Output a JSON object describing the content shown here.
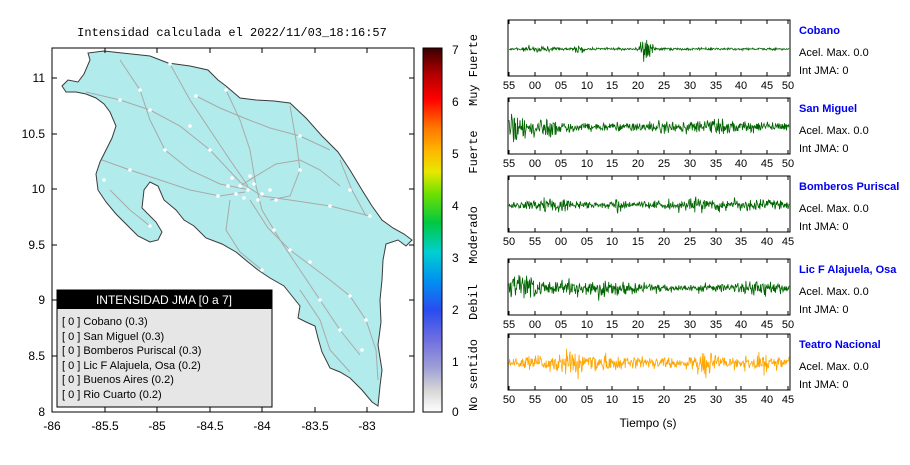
{
  "map": {
    "title": "Intensidad calculada el 2022/11/03_18:16:57",
    "xticks": [
      "-86",
      "-85.5",
      "-85",
      "-84.5",
      "-84",
      "-83.5",
      "-83"
    ],
    "yticks": [
      "11",
      "10.5",
      "10",
      "9.5",
      "9",
      "8.5",
      "8"
    ],
    "colors": {
      "land": "#b2ebeb",
      "road": "#a9a9a9",
      "coast": "#3a3a3a"
    }
  },
  "legend": {
    "title": "INTENSIDAD JMA [0 a 7]",
    "items": [
      "[ 0 ] Cobano (0.3)",
      "[ 0 ] San Miguel (0.3)",
      "[ 0 ] Bomberos Puriscal (0.3)",
      "[ 0 ] Lic F Alajuela, Osa (0.2)",
      "[ 0 ] Buenos Aires (0.2)",
      "[ 0 ] Rio Cuarto (0.2)"
    ]
  },
  "colorbar": {
    "ticks": [
      "7",
      "6",
      "5",
      "4",
      "3",
      "2",
      "1",
      "0"
    ],
    "labels": [
      "Muy Fuerte",
      "Fuerte",
      "Moderado",
      "Debil",
      "No sentido"
    ]
  },
  "waveforms": {
    "xlabel": "Tiempo (s)",
    "panels": [
      {
        "station": "Cobano",
        "acel": "Acel. Max. 0.0",
        "int": "Int JMA: 0",
        "color": "#006400",
        "ticks": [
          "55",
          "00",
          "05",
          "10",
          "15",
          "20",
          "25",
          "30",
          "35",
          "40",
          "45",
          "50"
        ]
      },
      {
        "station": "San Miguel",
        "acel": "Acel. Max. 0.0",
        "int": "Int JMA: 0",
        "color": "#006400",
        "ticks": [
          "55",
          "00",
          "05",
          "10",
          "15",
          "20",
          "25",
          "30",
          "35",
          "40",
          "45",
          "50"
        ]
      },
      {
        "station": "Bomberos Puriscal",
        "acel": "Acel. Max. 0.0",
        "int": "Int JMA: 0",
        "color": "#006400",
        "ticks": [
          "50",
          "55",
          "00",
          "05",
          "10",
          "15",
          "20",
          "25",
          "30",
          "35",
          "40",
          "45"
        ]
      },
      {
        "station": "Lic F Alajuela, Osa",
        "acel": "Acel. Max. 0.0",
        "int": "Int JMA: 0",
        "color": "#006400",
        "ticks": [
          "55",
          "00",
          "05",
          "10",
          "15",
          "20",
          "25",
          "30",
          "35",
          "40",
          "45",
          "50"
        ]
      },
      {
        "station": "Teatro Nacional",
        "acel": "Acel. Max. 0.0",
        "int": "Int JMA: 0",
        "color": "#ffa500",
        "ticks": [
          "50",
          "55",
          "00",
          "05",
          "10",
          "15",
          "20",
          "25",
          "30",
          "35",
          "40",
          "45"
        ]
      }
    ]
  },
  "chart_data": [
    {
      "type": "scatter",
      "title": "Intensidad calculada el 2022/11/03_18:16:57",
      "xlim": [
        -86,
        -82.6
      ],
      "ylim": [
        8,
        11.3
      ],
      "colorbar_range": [
        0,
        7
      ],
      "colorbar_labels": [
        "Muy Fuerte",
        "Fuerte",
        "Moderado",
        "Debil",
        "No sentido"
      ],
      "legend_title": "INTENSIDAD JMA [0 a 7]",
      "stations": [
        {
          "name": "Cobano",
          "intensity": 0.3
        },
        {
          "name": "San Miguel",
          "intensity": 0.3
        },
        {
          "name": "Bomberos Puriscal",
          "intensity": 0.3
        },
        {
          "name": "Lic F Alajuela, Osa",
          "intensity": 0.2
        },
        {
          "name": "Buenos Aires",
          "intensity": 0.2
        },
        {
          "name": "Rio Cuarto",
          "intensity": 0.2
        }
      ]
    },
    {
      "type": "line",
      "xlabel": "Tiempo (s)",
      "series": [
        {
          "name": "Cobano",
          "acel_max": 0.0,
          "int_jma": 0
        },
        {
          "name": "San Miguel",
          "acel_max": 0.0,
          "int_jma": 0
        },
        {
          "name": "Bomberos Puriscal",
          "acel_max": 0.0,
          "int_jma": 0
        },
        {
          "name": "Lic F Alajuela, Osa",
          "acel_max": 0.0,
          "int_jma": 0
        },
        {
          "name": "Teatro Nacional",
          "acel_max": 0.0,
          "int_jma": 0
        }
      ]
    }
  ]
}
